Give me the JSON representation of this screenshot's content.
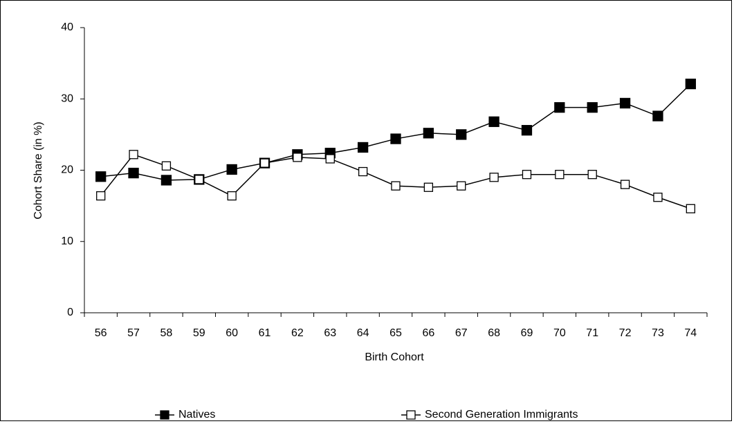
{
  "chart_data": {
    "type": "line",
    "x_label": "Birth Cohort",
    "y_label": "Cohort Share (in %)",
    "categories": [
      "56",
      "57",
      "58",
      "59",
      "60",
      "61",
      "62",
      "63",
      "64",
      "65",
      "66",
      "67",
      "68",
      "69",
      "70",
      "71",
      "72",
      "73",
      "74"
    ],
    "series": [
      {
        "name": "Natives",
        "color": "#000000",
        "marker_fill": "#000000",
        "values": [
          19.1,
          19.6,
          18.6,
          18.7,
          20.1,
          21.0,
          22.2,
          22.4,
          23.2,
          24.4,
          25.2,
          25.0,
          26.8,
          25.6,
          28.8,
          28.8,
          29.4,
          27.6,
          32.1
        ]
      },
      {
        "name": "Second Generation Immigrants",
        "color": "#000000",
        "marker_fill": "#ffffff",
        "values": [
          16.4,
          22.2,
          20.6,
          18.7,
          16.4,
          21.0,
          21.8,
          21.6,
          19.8,
          17.8,
          17.6,
          17.8,
          19.0,
          19.4,
          19.4,
          19.4,
          18.0,
          16.2,
          14.6
        ]
      }
    ],
    "ylim": [
      0,
      40
    ],
    "yticks": [
      0,
      10,
      20,
      30,
      40
    ],
    "legend": "bottom"
  }
}
